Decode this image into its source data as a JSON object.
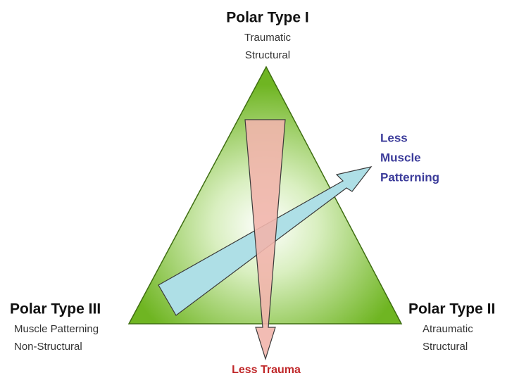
{
  "poles": [
    {
      "title": "Polar Type I",
      "lines": [
        "Traumatic",
        "Structural"
      ]
    },
    {
      "title": "Polar Type II",
      "lines": [
        "Atraumatic",
        "Structural"
      ]
    },
    {
      "title": "Polar Type III",
      "lines": [
        "Muscle Patterning",
        "Non-Structural"
      ]
    }
  ],
  "arrows": {
    "muscle": [
      "Less",
      "Muscle",
      "Patterning"
    ],
    "trauma": "Less Trauma"
  }
}
